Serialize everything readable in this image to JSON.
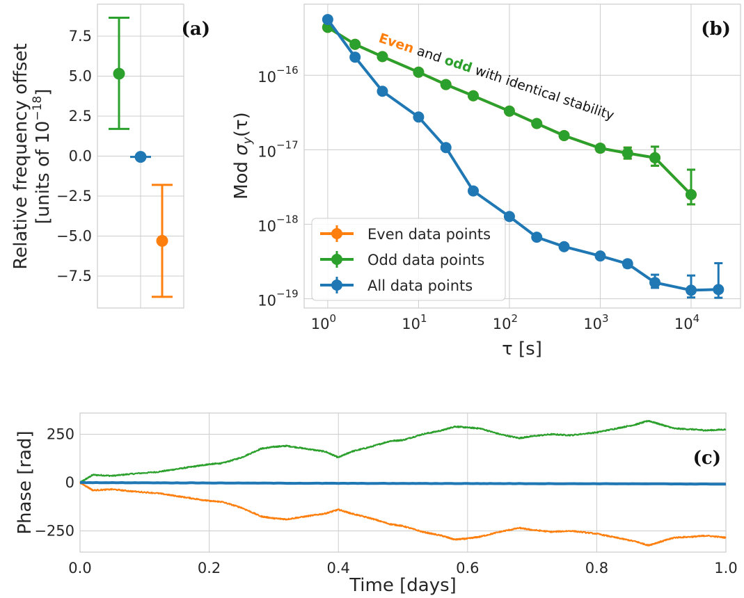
{
  "colors": {
    "even": "#ff7f0e",
    "odd": "#2ca02c",
    "all": "#1f77b4"
  },
  "chart_data": [
    {
      "panel": "(a)",
      "type": "scatter",
      "ylabel_line1": "Relative frequency offset",
      "ylabel_line2": "[units of 10",
      "ylabel_exp": "−18",
      "ylabel_end": "]",
      "ylim": [
        -9.5,
        9.5
      ],
      "yticks": [
        7.5,
        5.0,
        2.5,
        0.0,
        -2.5,
        -5.0,
        -7.5
      ],
      "ytick_labels": [
        "7.5",
        "5.0",
        "2.5",
        "0.0",
        "−2.5",
        "−5.0",
        "−7.5"
      ],
      "points": [
        {
          "series": "odd",
          "x": -1,
          "y": 5.15,
          "err_low": 1.7,
          "err_high": 8.65
        },
        {
          "series": "all",
          "x": 0,
          "y": -0.05,
          "err_low": -0.05,
          "err_high": -0.05
        },
        {
          "series": "even",
          "x": 1,
          "y": -5.3,
          "err_low": -8.8,
          "err_high": -1.8
        }
      ]
    },
    {
      "panel": "(b)",
      "type": "line",
      "xscale": "log",
      "yscale": "log",
      "xlabel": "τ [s]",
      "ylabel_pre": "Mod ",
      "ylabel_sigma": "σ",
      "ylabel_sub": "y",
      "ylabel_post": "(τ)",
      "xlim": [
        0.55,
        35000
      ],
      "ylim": [
        7.5e-20,
        9e-16
      ],
      "xticks": [
        1,
        10,
        100,
        1000,
        10000
      ],
      "xtick_exps": [
        "0",
        "1",
        "2",
        "3",
        "4"
      ],
      "yticks": [
        1e-16,
        1e-17,
        1e-18,
        1e-19
      ],
      "ytick_exps": [
        "−16",
        "−17",
        "−18",
        "−19"
      ],
      "tick_base": "10",
      "legend_placement": "lower-left",
      "legend": [
        "Even data points",
        "Odd data points",
        "All data points"
      ],
      "annotation": {
        "even": "Even",
        "and": " and ",
        "odd": "odd",
        "rest": " with identical stability"
      },
      "series": [
        {
          "name": "Even data points",
          "color": "even",
          "x": [
            1,
            2,
            4,
            10,
            20,
            40,
            100,
            200,
            400,
            1000,
            2000,
            4000,
            10000
          ],
          "y": [
            4.4e-16,
            2.6e-16,
            1.78e-16,
            1.1e-16,
            7.5e-17,
            5.3e-17,
            3.3e-17,
            2.25e-17,
            1.55e-17,
            1.05e-17,
            9e-18,
            7.8e-18,
            2.5e-18
          ],
          "err_low": [
            4.35e-16,
            2.57e-16,
            1.76e-16,
            1.09e-16,
            7.4e-17,
            5.2e-17,
            3.2e-17,
            2.18e-17,
            1.48e-17,
            9.5e-18,
            7.6e-18,
            6.1e-18,
            1.85e-18
          ],
          "err_high": [
            4.45e-16,
            2.63e-16,
            1.8e-16,
            1.11e-16,
            7.6e-17,
            5.4e-17,
            3.4e-17,
            2.32e-17,
            1.62e-17,
            1.14e-17,
            1.07e-17,
            1.1e-17,
            5.4e-18
          ]
        },
        {
          "name": "Odd data points",
          "color": "odd",
          "x": [
            1,
            2,
            4,
            10,
            20,
            40,
            100,
            200,
            400,
            1000,
            2000,
            4000,
            10000
          ],
          "y": [
            4.4e-16,
            2.6e-16,
            1.78e-16,
            1.1e-16,
            7.5e-17,
            5.3e-17,
            3.3e-17,
            2.25e-17,
            1.55e-17,
            1.05e-17,
            9e-18,
            7.8e-18,
            2.5e-18
          ],
          "err_low": [
            4.35e-16,
            2.57e-16,
            1.76e-16,
            1.09e-16,
            7.4e-17,
            5.2e-17,
            3.2e-17,
            2.18e-17,
            1.48e-17,
            9.5e-18,
            7.6e-18,
            6.1e-18,
            1.85e-18
          ],
          "err_high": [
            4.45e-16,
            2.63e-16,
            1.8e-16,
            1.11e-16,
            7.6e-17,
            5.4e-17,
            3.4e-17,
            2.32e-17,
            1.62e-17,
            1.14e-17,
            1.07e-17,
            1.1e-17,
            5.4e-18
          ]
        },
        {
          "name": "All data points",
          "color": "all",
          "x": [
            1,
            2,
            4,
            10,
            20,
            40,
            100,
            200,
            400,
            1000,
            2000,
            4000,
            10000,
            20000
          ],
          "y": [
            5.6e-16,
            1.75e-16,
            6.1e-17,
            2.75e-17,
            1.07e-17,
            2.8e-18,
            1.27e-18,
            6.7e-19,
            5e-19,
            3.75e-19,
            2.95e-19,
            1.65e-19,
            1.3e-19,
            1.33e-19
          ],
          "err_low": [
            5.55e-16,
            1.74e-16,
            6.05e-17,
            2.72e-17,
            1.05e-17,
            2.76e-18,
            1.24e-18,
            6.5e-19,
            4.85e-19,
            3.6e-19,
            2.65e-19,
            1.4e-19,
            1.04e-19,
            1.03e-19
          ],
          "err_high": [
            5.65e-16,
            1.76e-16,
            6.15e-17,
            2.78e-17,
            1.09e-17,
            2.84e-18,
            1.3e-18,
            6.9e-19,
            5.15e-19,
            3.9e-19,
            3.25e-19,
            2.1e-19,
            2.05e-19,
            3e-19
          ]
        }
      ]
    },
    {
      "panel": "(c)",
      "type": "line",
      "xlabel": "Time [days]",
      "ylabel": "Phase [rad]",
      "xlim": [
        0.0,
        1.0
      ],
      "ylim": [
        -360,
        360
      ],
      "xticks": [
        0.0,
        0.2,
        0.4,
        0.6,
        0.8,
        1.0
      ],
      "xtick_labels": [
        "0.0",
        "0.2",
        "0.4",
        "0.6",
        "0.8",
        "1.0"
      ],
      "yticks": [
        250,
        0,
        -250
      ],
      "ytick_labels": [
        "250",
        "0",
        "−250"
      ],
      "series": [
        {
          "color": "odd",
          "x": [
            0.0,
            0.02,
            0.05,
            0.08,
            0.12,
            0.15,
            0.18,
            0.2,
            0.22,
            0.25,
            0.28,
            0.3,
            0.32,
            0.35,
            0.38,
            0.4,
            0.42,
            0.45,
            0.48,
            0.5,
            0.53,
            0.56,
            0.58,
            0.6,
            0.62,
            0.65,
            0.68,
            0.7,
            0.73,
            0.76,
            0.8,
            0.83,
            0.86,
            0.88,
            0.9,
            0.92,
            0.95,
            0.97,
            1.0
          ],
          "y": [
            0,
            40,
            35,
            45,
            55,
            70,
            85,
            95,
            100,
            130,
            175,
            185,
            190,
            175,
            160,
            130,
            160,
            185,
            215,
            220,
            250,
            270,
            290,
            285,
            280,
            250,
            230,
            240,
            250,
            245,
            260,
            280,
            300,
            320,
            300,
            280,
            275,
            270,
            275
          ]
        },
        {
          "color": "even",
          "x": [
            0.0,
            0.02,
            0.05,
            0.08,
            0.12,
            0.15,
            0.18,
            0.2,
            0.22,
            0.25,
            0.28,
            0.3,
            0.32,
            0.35,
            0.38,
            0.4,
            0.42,
            0.45,
            0.48,
            0.5,
            0.53,
            0.56,
            0.58,
            0.6,
            0.62,
            0.65,
            0.68,
            0.7,
            0.73,
            0.76,
            0.8,
            0.83,
            0.86,
            0.88,
            0.9,
            0.92,
            0.95,
            0.97,
            1.0
          ],
          "y": [
            0,
            -40,
            -35,
            -45,
            -55,
            -70,
            -85,
            -95,
            -100,
            -130,
            -175,
            -185,
            -190,
            -175,
            -160,
            -140,
            -160,
            -185,
            -215,
            -225,
            -255,
            -275,
            -295,
            -290,
            -280,
            -255,
            -235,
            -245,
            -255,
            -250,
            -265,
            -285,
            -305,
            -325,
            -305,
            -285,
            -280,
            -275,
            -285
          ]
        },
        {
          "color": "all",
          "x": [
            0.0,
            0.2,
            0.4,
            0.6,
            0.8,
            1.0
          ],
          "y": [
            0,
            -2,
            -4,
            -5,
            -6,
            -8
          ]
        }
      ]
    }
  ]
}
